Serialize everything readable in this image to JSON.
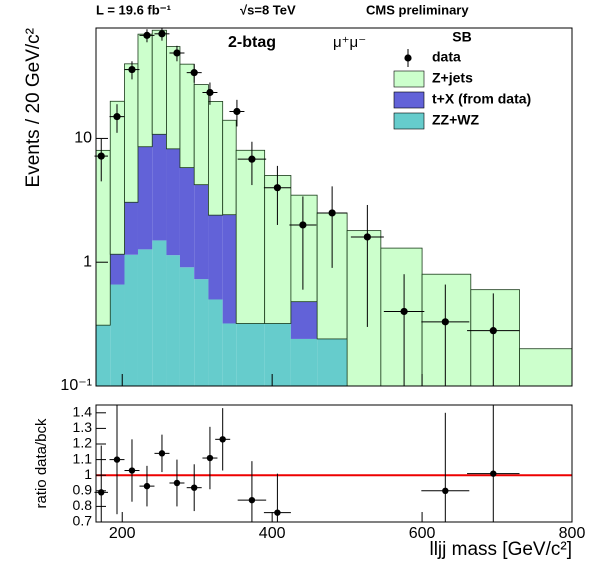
{
  "header": {
    "lumi": "L = 19.6 fb⁻¹",
    "energy": "√s=8 TeV",
    "experiment": "CMS preliminary"
  },
  "chart_data": [
    {
      "type": "stacked_histogram",
      "annotation": "2-btag",
      "channel": "μ⁺μ⁻",
      "ylabel": "Events / 20 GeV/c²",
      "legend_title": "SB",
      "legend": "upper right",
      "log_y": true,
      "bins": [
        165,
        184,
        203,
        221,
        240,
        259,
        277,
        296,
        315,
        334,
        352,
        390,
        425,
        460,
        500,
        545,
        600,
        665,
        730,
        800
      ],
      "series": [
        {
          "name": "Z+jets",
          "color": "#ccffcc",
          "values": [
            7.7,
            18.8,
            37,
            61,
            64,
            47,
            34,
            23,
            17.5,
            11.6,
            7.7,
            4.7,
            3.0,
            2.26,
            1.8,
            1.3,
            0.8,
            0.6,
            0.2
          ]
        },
        {
          "name": "t+X (from data)",
          "color": "#6262d8",
          "values": [
            0,
            0.5,
            1.9,
            7.3,
            9.3,
            7.1,
            4.9,
            3.5,
            1.9,
            2.1,
            0,
            0,
            0.24,
            0,
            0,
            0,
            0,
            0,
            0
          ]
        },
        {
          "name": "ZZ+WZ",
          "color": "#66cccc",
          "values": [
            0.31,
            0.66,
            1.15,
            1.27,
            1.5,
            1.14,
            0.91,
            0.73,
            0.5,
            0.32,
            0.32,
            0.32,
            0.24,
            0.24,
            0,
            0,
            0,
            0,
            0
          ]
        }
      ],
      "points": {
        "name": "data",
        "color": "#000000",
        "x": [
          172,
          193,
          213,
          233,
          253,
          273,
          296,
          317,
          353,
          373,
          407,
          441,
          480,
          527,
          576,
          631,
          695
        ],
        "values": [
          7.2,
          15,
          36,
          68,
          70,
          49,
          34,
          23.5,
          16.5,
          6.8,
          4.0,
          2.0,
          2.5,
          1.6,
          0.4,
          0.33,
          0.28
        ],
        "yerr": [
          2.7,
          3.9,
          6,
          8.2,
          8.4,
          7,
          5.8,
          4.8,
          4,
          2.6,
          2,
          1.4,
          1.6,
          1.3,
          0.4,
          0.33,
          0.28
        ],
        "xerr": [
          9,
          10,
          10,
          10,
          10,
          10,
          10,
          10,
          10,
          19,
          18,
          18,
          20,
          22,
          27,
          32,
          35
        ]
      },
      "xlim": [
        165,
        800
      ],
      "xticks": [
        200,
        400,
        600,
        800
      ],
      "ylim": [
        0.1,
        78
      ],
      "yticks": [
        {
          "value": 0.1,
          "label": "10⁻¹"
        },
        1,
        10
      ]
    },
    {
      "type": "ratio",
      "ylabel": "ratio data/bck",
      "xlabel": "lljj mass [GeV/c²]",
      "x": [
        172,
        193,
        213,
        233,
        253,
        273,
        296,
        317,
        334,
        373,
        407,
        631,
        695
      ],
      "values": [
        0.89,
        1.1,
        1.03,
        0.93,
        1.14,
        0.95,
        0.92,
        1.11,
        1.23,
        0.84,
        0.76,
        0.9,
        1.01
      ],
      "yerr": [
        0.3,
        0.35,
        0.2,
        0.13,
        0.12,
        0.15,
        0.15,
        0.2,
        0.2,
        0.25,
        0.25,
        0.5,
        0.6
      ],
      "xerr": [
        9,
        10,
        10,
        10,
        10,
        10,
        10,
        10,
        10,
        19,
        18,
        32,
        35
      ],
      "hline": 1,
      "hline_color": "#ee0000",
      "xlim": [
        165,
        800
      ],
      "xticks": [
        200,
        400,
        600,
        800
      ],
      "ylim": [
        0.7,
        1.45
      ],
      "yticks": [
        0.7,
        0.8,
        0.9,
        1,
        1.1,
        1.2,
        1.3,
        1.4
      ]
    }
  ]
}
